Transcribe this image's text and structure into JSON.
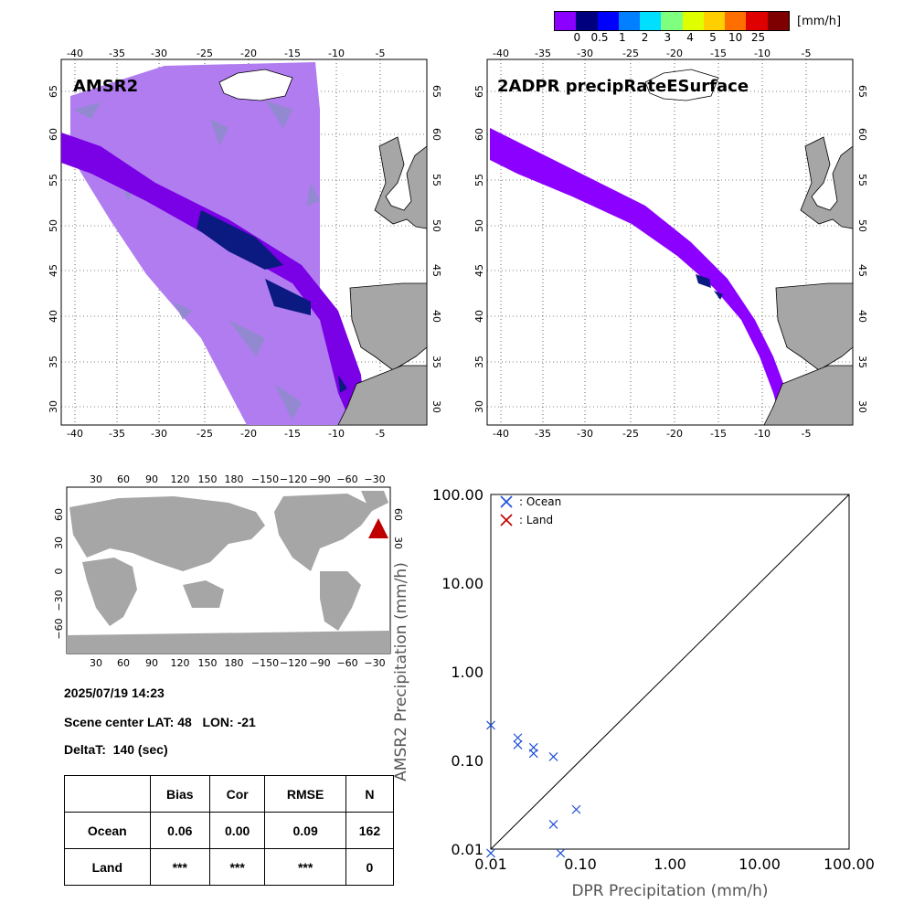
{
  "colorbar": {
    "unit": "[mm/h]",
    "labels": [
      "0",
      "0.5",
      "1",
      "2",
      "3",
      "4",
      "5",
      "10",
      "25"
    ],
    "colors": [
      "#8b00ff",
      "#00007f",
      "#0000ff",
      "#007fff",
      "#00dfff",
      "#7fff7f",
      "#dfff00",
      "#ffcf00",
      "#ff6f00",
      "#df0000",
      "#7f0000"
    ]
  },
  "map_left": {
    "title": "AMSR2",
    "lon_ticks": [
      "-40",
      "-35",
      "-30",
      "-25",
      "-20",
      "-15",
      "-10",
      "-5"
    ],
    "lat_ticks": [
      "65",
      "60",
      "55",
      "50",
      "45",
      "40",
      "35",
      "30"
    ]
  },
  "map_right": {
    "title": "2ADPR precipRateESurface",
    "lon_ticks": [
      "-40",
      "-35",
      "-30",
      "-25",
      "-20",
      "-15",
      "-10",
      "-5"
    ],
    "lat_ticks": [
      "65",
      "60",
      "55",
      "50",
      "45",
      "40",
      "35",
      "30"
    ]
  },
  "world_map": {
    "lon_ticks": [
      "30",
      "60",
      "90",
      "120",
      "150",
      "180",
      "−150",
      "−120",
      "−90",
      "−60",
      "−30"
    ],
    "lat_ticks": [
      "60",
      "30",
      "0",
      "−30",
      "−60"
    ]
  },
  "info": {
    "datetime": "2025/07/19 14:23",
    "scene_center": "Scene center LAT: 48   LON: -21",
    "deltat": "DeltaT:  140 (sec)"
  },
  "stats_table": {
    "headers": [
      "",
      "Bias",
      "Cor",
      "RMSE",
      "N"
    ],
    "rows": [
      [
        "Ocean",
        "0.06",
        "0.00",
        "0.09",
        "162"
      ],
      [
        "Land",
        "***",
        "***",
        "***",
        "0"
      ]
    ]
  },
  "chart_data": {
    "type": "scatter",
    "xlabel": "DPR Precipitation (mm/h)",
    "ylabel": "AMSR2 Precipitation (mm/h)",
    "xscale": "log",
    "yscale": "log",
    "xlim": [
      0.01,
      100
    ],
    "ylim": [
      0.01,
      100
    ],
    "x_tick_labels": [
      "0.01",
      "0.10",
      "1.00",
      "10.00",
      "100.00"
    ],
    "y_tick_labels": [
      "0.01",
      "0.10",
      "1.00",
      "10.00",
      "100.00"
    ],
    "legend_position": "top-left",
    "series": [
      {
        "name": ": Ocean",
        "color": "#1f4fd8",
        "marker": "x",
        "points": [
          [
            0.01,
            0.25
          ],
          [
            0.02,
            0.18
          ],
          [
            0.02,
            0.15
          ],
          [
            0.03,
            0.14
          ],
          [
            0.03,
            0.12
          ],
          [
            0.05,
            0.11
          ],
          [
            0.05,
            0.019
          ],
          [
            0.06,
            0.009
          ],
          [
            0.09,
            0.028
          ],
          [
            0.01,
            0.009
          ]
        ]
      },
      {
        "name": ": Land",
        "color": "#c00000",
        "marker": "x",
        "points": []
      }
    ],
    "reference_line": "1:1"
  }
}
